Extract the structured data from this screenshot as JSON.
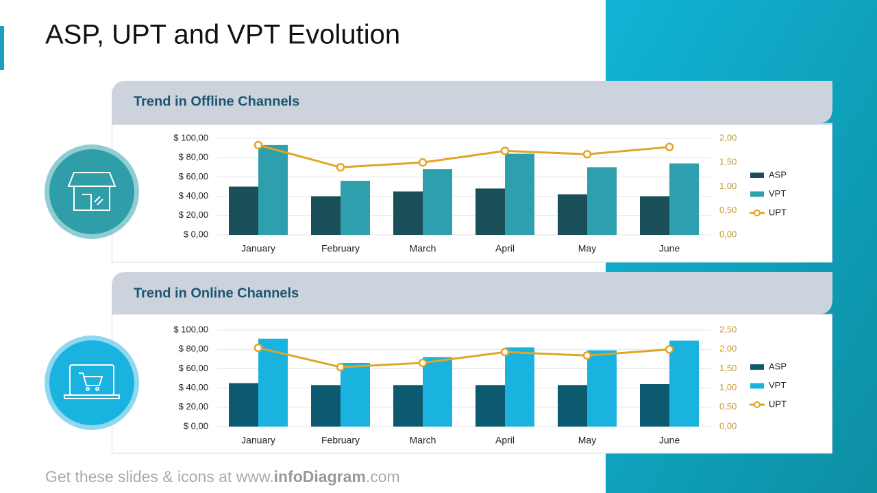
{
  "title": "ASP, UPT and VPT Evolution",
  "footer": {
    "prefix": "Get these slides & icons at www.",
    "brand": "infoDiagram",
    "suffix": ".com"
  },
  "chart_data": [
    {
      "type": "bar",
      "title": "Trend in Offline Channels",
      "categories": [
        "January",
        "February",
        "March",
        "April",
        "May",
        "June"
      ],
      "series": [
        {
          "name": "ASP",
          "color": "#1a4f5a",
          "values": [
            50,
            40,
            45,
            48,
            42,
            40
          ]
        },
        {
          "name": "VPT",
          "color": "#2e9fad",
          "values": [
            93,
            56,
            68,
            84,
            70,
            74
          ]
        },
        {
          "name": "UPT",
          "type": "line",
          "axis": "y2",
          "color": "#e0a526",
          "values": [
            1.86,
            1.4,
            1.5,
            1.74,
            1.67,
            1.82
          ]
        }
      ],
      "ylim": [
        0,
        100
      ],
      "yticks": [
        {
          "value": 0,
          "label": "$ 0,00"
        },
        {
          "value": 20,
          "label": "$ 20,00"
        },
        {
          "value": 40,
          "label": "$ 40,00"
        },
        {
          "value": 60,
          "label": "$ 60,00"
        },
        {
          "value": 80,
          "label": "$ 80,00"
        },
        {
          "value": 100,
          "label": "$ 100,00"
        }
      ],
      "y2lim": [
        0,
        2
      ],
      "y2ticks": [
        {
          "value": 0,
          "label": "0,00"
        },
        {
          "value": 0.5,
          "label": "0,50"
        },
        {
          "value": 1,
          "label": "1,00"
        },
        {
          "value": 1.5,
          "label": "1,50"
        },
        {
          "value": 2,
          "label": "2,00"
        }
      ],
      "grid": true,
      "legend": "right"
    },
    {
      "type": "bar",
      "title": "Trend in Online Channels",
      "categories": [
        "January",
        "February",
        "March",
        "April",
        "May",
        "June"
      ],
      "series": [
        {
          "name": "ASP",
          "color": "#0d5a70",
          "values": [
            45,
            43,
            43,
            43,
            43,
            44
          ]
        },
        {
          "name": "VPT",
          "color": "#1ab3e0",
          "values": [
            91,
            66,
            72,
            82,
            79,
            89
          ]
        },
        {
          "name": "UPT",
          "type": "line",
          "axis": "y2",
          "color": "#e0a526",
          "values": [
            2.04,
            1.54,
            1.65,
            1.93,
            1.84,
            2.0
          ]
        }
      ],
      "ylim": [
        0,
        100
      ],
      "yticks": [
        {
          "value": 0,
          "label": "$ 0,00"
        },
        {
          "value": 20,
          "label": "$ 20,00"
        },
        {
          "value": 40,
          "label": "$ 40,00"
        },
        {
          "value": 60,
          "label": "$ 60,00"
        },
        {
          "value": 80,
          "label": "$ 80,00"
        },
        {
          "value": 100,
          "label": "$ 100,00"
        }
      ],
      "y2lim": [
        0,
        2.5
      ],
      "y2ticks": [
        {
          "value": 0,
          "label": "0,00"
        },
        {
          "value": 0.5,
          "label": "0,50"
        },
        {
          "value": 1,
          "label": "1,00"
        },
        {
          "value": 1.5,
          "label": "1,50"
        },
        {
          "value": 2,
          "label": "2,00"
        },
        {
          "value": 2.5,
          "label": "2,50"
        }
      ],
      "grid": true,
      "legend": "right"
    }
  ]
}
